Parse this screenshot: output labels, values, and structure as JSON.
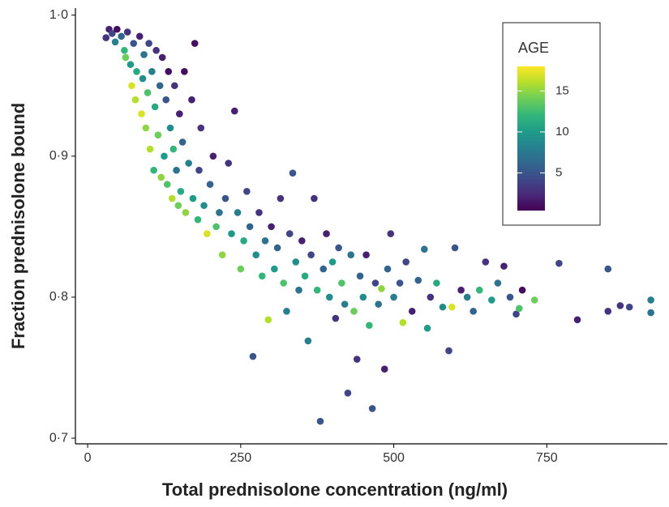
{
  "chart_data": {
    "type": "scatter",
    "xlabel": "Total prednisolone concentration (ng/ml)",
    "ylabel": "Fraction prednisolone bound",
    "xlim": [
      -20,
      947
    ],
    "ylim": [
      0.696,
      1.005
    ],
    "xticks": [
      0,
      250,
      500,
      750
    ],
    "yticks": [
      {
        "value": 0.7,
        "label": "0·7"
      },
      {
        "value": 0.8,
        "label": "0·8"
      },
      {
        "value": 0.9,
        "label": "0·9"
      },
      {
        "value": 1.0,
        "label": "1·0"
      }
    ],
    "colorbar": {
      "title": "AGE",
      "colormap": "viridis",
      "clim": [
        0.4,
        18
      ],
      "ticks": [
        5,
        10,
        15
      ]
    },
    "x": [
      30,
      35,
      40,
      45,
      48,
      55,
      60,
      62,
      65,
      70,
      72,
      75,
      78,
      80,
      85,
      88,
      90,
      92,
      95,
      98,
      100,
      102,
      105,
      108,
      110,
      112,
      115,
      118,
      120,
      122,
      125,
      128,
      130,
      132,
      135,
      138,
      140,
      142,
      145,
      148,
      150,
      152,
      155,
      158,
      160,
      165,
      170,
      172,
      175,
      180,
      182,
      185,
      190,
      195,
      200,
      205,
      210,
      215,
      220,
      225,
      230,
      235,
      240,
      245,
      250,
      255,
      260,
      265,
      270,
      275,
      280,
      285,
      290,
      295,
      300,
      305,
      310,
      315,
      320,
      325,
      330,
      335,
      340,
      345,
      350,
      355,
      360,
      365,
      370,
      375,
      380,
      385,
      390,
      395,
      400,
      405,
      410,
      415,
      420,
      425,
      430,
      435,
      440,
      445,
      450,
      455,
      460,
      465,
      470,
      475,
      480,
      485,
      490,
      495,
      500,
      510,
      515,
      520,
      530,
      540,
      550,
      555,
      560,
      570,
      580,
      590,
      595,
      600,
      610,
      620,
      630,
      640,
      650,
      660,
      670,
      680,
      690,
      700,
      705,
      710,
      730,
      770,
      800,
      850,
      850,
      870,
      885,
      920,
      920
    ],
    "values": [
      0.984,
      0.99,
      0.987,
      0.981,
      0.99,
      0.985,
      0.975,
      0.97,
      0.988,
      0.965,
      0.95,
      0.98,
      0.94,
      0.96,
      0.985,
      0.93,
      0.955,
      0.972,
      0.92,
      0.945,
      0.98,
      0.905,
      0.96,
      0.89,
      0.935,
      0.975,
      0.915,
      0.95,
      0.885,
      0.97,
      0.9,
      0.94,
      0.88,
      0.96,
      0.92,
      0.87,
      0.905,
      0.95,
      0.89,
      0.865,
      0.93,
      0.875,
      0.91,
      0.96,
      0.86,
      0.895,
      0.94,
      0.87,
      0.98,
      0.855,
      0.89,
      0.92,
      0.865,
      0.845,
      0.88,
      0.9,
      0.85,
      0.86,
      0.83,
      0.87,
      0.895,
      0.845,
      0.932,
      0.86,
      0.82,
      0.84,
      0.875,
      0.85,
      0.758,
      0.83,
      0.86,
      0.815,
      0.84,
      0.784,
      0.85,
      0.82,
      0.835,
      0.87,
      0.81,
      0.79,
      0.845,
      0.888,
      0.825,
      0.805,
      0.84,
      0.815,
      0.769,
      0.83,
      0.87,
      0.805,
      0.712,
      0.82,
      0.845,
      0.8,
      0.825,
      0.785,
      0.835,
      0.81,
      0.795,
      0.732,
      0.83,
      0.79,
      0.756,
      0.815,
      0.8,
      0.83,
      0.78,
      0.721,
      0.81,
      0.795,
      0.806,
      0.749,
      0.82,
      0.845,
      0.8,
      0.81,
      0.782,
      0.825,
      0.79,
      0.812,
      0.834,
      0.778,
      0.8,
      0.81,
      0.793,
      0.762,
      0.793,
      0.835,
      0.805,
      0.8,
      0.79,
      0.805,
      0.825,
      0.798,
      0.81,
      0.822,
      0.8,
      0.788,
      0.792,
      0.805,
      0.798,
      0.824,
      0.784,
      0.82,
      0.79,
      0.794,
      0.793,
      0.798,
      0.789
    ],
    "color_values": [
      3,
      2,
      4,
      8,
      1,
      6,
      12,
      14,
      3,
      10,
      17,
      5,
      16,
      11,
      2,
      17,
      9,
      7,
      15,
      13,
      4,
      16,
      8,
      12,
      11,
      3,
      14,
      6,
      15,
      2,
      10,
      5,
      13,
      1,
      9,
      16,
      12,
      3,
      7,
      14,
      2,
      11,
      6,
      1,
      15,
      8,
      2,
      10,
      1,
      12,
      4,
      3,
      9,
      17,
      6,
      2,
      13,
      7,
      15,
      5,
      3,
      10,
      2,
      8,
      14,
      11,
      4,
      6,
      5,
      9,
      3,
      12,
      7,
      16,
      2,
      10,
      6,
      3,
      13,
      8,
      4,
      5,
      9,
      7,
      2,
      11,
      8,
      4,
      3,
      12,
      5,
      6,
      2,
      9,
      10,
      3,
      5,
      13,
      8,
      4,
      7,
      14,
      3,
      6,
      9,
      2,
      12,
      5,
      4,
      7,
      15,
      2,
      6,
      3,
      8,
      5,
      16,
      4,
      2,
      6,
      7,
      10,
      3,
      11,
      9,
      4,
      17,
      5,
      2,
      8,
      6,
      12,
      3,
      10,
      7,
      2,
      5,
      4,
      13,
      1,
      14,
      4,
      2,
      5,
      3,
      3,
      4,
      8,
      7
    ]
  }
}
